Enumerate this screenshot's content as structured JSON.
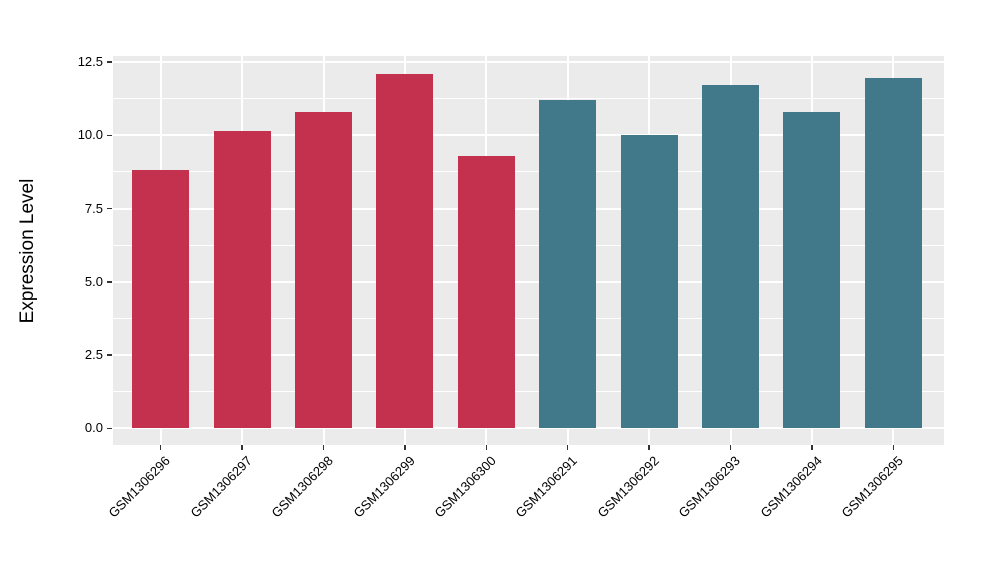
{
  "figure": {
    "background_color": "#FFFFFF",
    "panel_background_color": "#EBEBEB",
    "gridline_color": "#FFFFFF",
    "axis_text_color": "#000000",
    "tick_mark_color": "#333333"
  },
  "chart_data": {
    "type": "bar",
    "title": "",
    "xlabel": "",
    "ylabel": "Expression Level",
    "legend": "none",
    "grid": "major+minor",
    "x_tick_angle_deg": 45,
    "bars": [
      {
        "label": "GSM1306296",
        "value": 8.8,
        "color": "#C3314E"
      },
      {
        "label": "GSM1306297",
        "value": 10.15,
        "color": "#C3314E"
      },
      {
        "label": "GSM1306298",
        "value": 10.8,
        "color": "#C3314E"
      },
      {
        "label": "GSM1306299",
        "value": 12.1,
        "color": "#C3314E"
      },
      {
        "label": "GSM1306300",
        "value": 9.3,
        "color": "#C3314E"
      },
      {
        "label": "GSM1306291",
        "value": 11.2,
        "color": "#41798A"
      },
      {
        "label": "GSM1306292",
        "value": 10.0,
        "color": "#41798A"
      },
      {
        "label": "GSM1306293",
        "value": 11.7,
        "color": "#41798A"
      },
      {
        "label": "GSM1306294",
        "value": 10.8,
        "color": "#41798A"
      },
      {
        "label": "GSM1306295",
        "value": 11.95,
        "color": "#41798A"
      }
    ],
    "color_groups": [
      {
        "color": "#C3314E",
        "categories": [
          "GSM1306296",
          "GSM1306297",
          "GSM1306298",
          "GSM1306299",
          "GSM1306300"
        ]
      },
      {
        "color": "#41798A",
        "categories": [
          "GSM1306291",
          "GSM1306292",
          "GSM1306293",
          "GSM1306294",
          "GSM1306295"
        ]
      }
    ],
    "y_axis": {
      "tick_labels": [
        "0.0",
        "2.5",
        "5.0",
        "7.5",
        "10.0",
        "12.5"
      ],
      "tick_values": [
        0,
        2.5,
        5,
        7.5,
        10,
        12.5
      ],
      "minor_values": [
        1.25,
        3.75,
        6.25,
        8.75,
        11.25
      ],
      "range": [
        0,
        12.5
      ]
    }
  }
}
